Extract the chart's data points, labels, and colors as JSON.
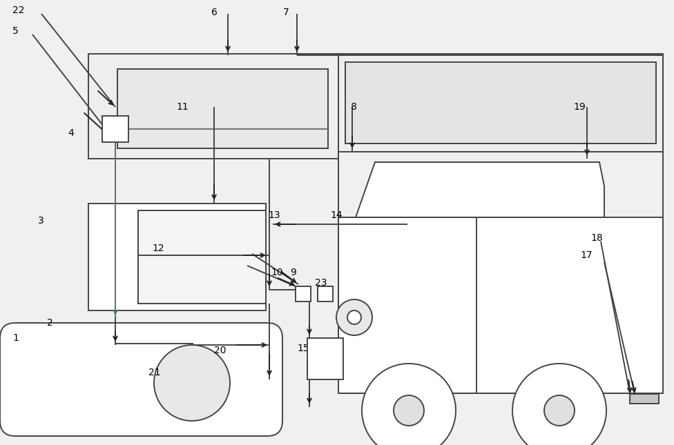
{
  "bg_color": "#f0f0f0",
  "line_color": "#444444",
  "arrow_color": "#222222",
  "box_color": "#ffffff",
  "box_edge": "#444444",
  "fig_width": 9.76,
  "fig_height": 6.45
}
